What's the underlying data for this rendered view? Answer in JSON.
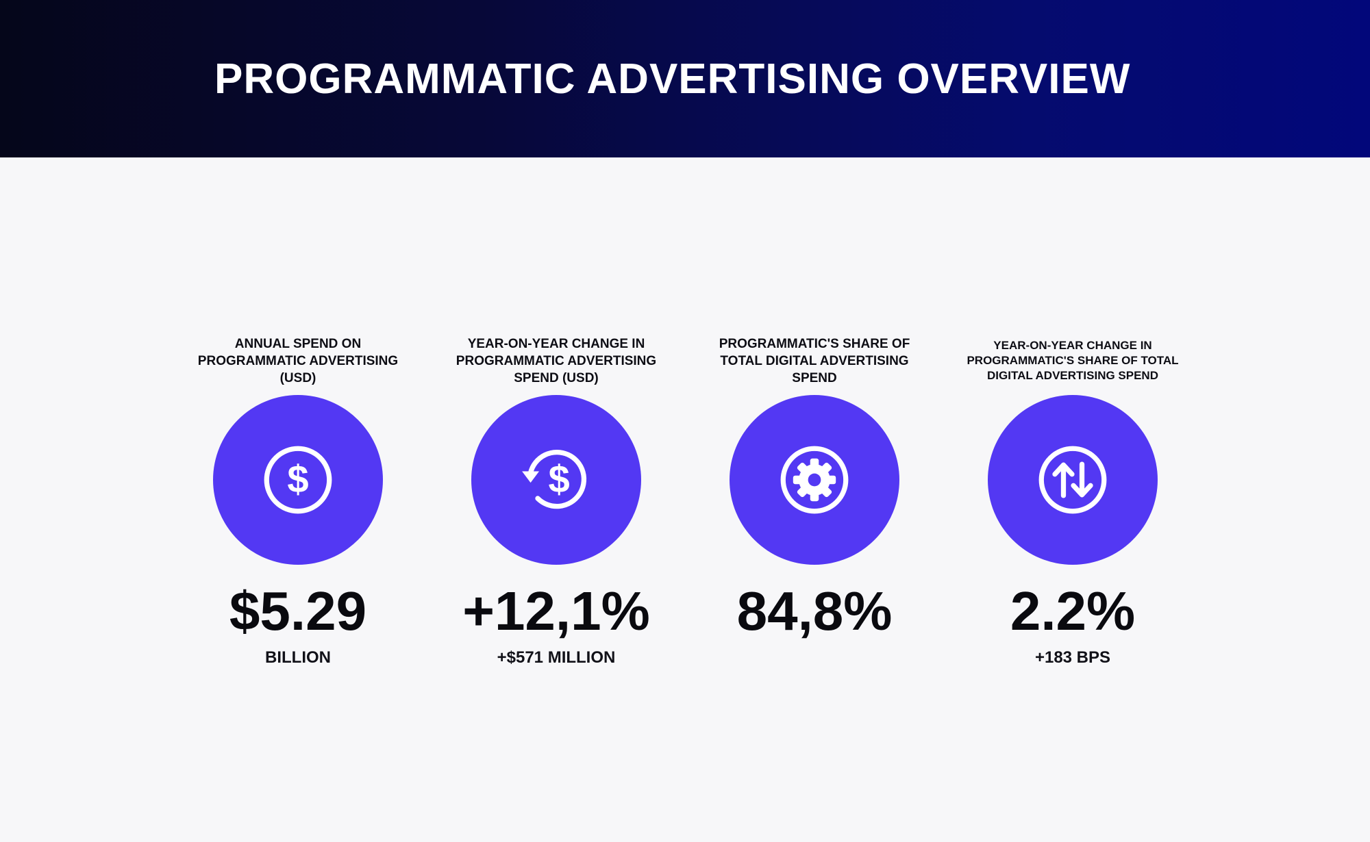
{
  "header": {
    "title": "PROGRAMMATIC ADVERTISING OVERVIEW"
  },
  "colors": {
    "accent": "#5338f3",
    "header_dark": "#05061a",
    "header_blue": "#02077a",
    "background": "#f7f7f9"
  },
  "kpis": [
    {
      "label": "ANNUAL SPEND ON PROGRAMMATIC ADVERTISING (USD)",
      "icon": "dollar-circle-icon",
      "value": "$5.29",
      "sub": "BILLION"
    },
    {
      "label": "YEAR-ON-YEAR CHANGE IN PROGRAMMATIC ADVERTISING SPEND (USD)",
      "icon": "dollar-refresh-icon",
      "value": "+12,1%",
      "sub": "+$571 MILLION"
    },
    {
      "label": "PROGRAMMATIC'S SHARE OF TOTAL DIGITAL ADVERTISING SPEND",
      "icon": "gear-icon",
      "value": "84,8%",
      "sub": ""
    },
    {
      "label": "YEAR-ON-YEAR CHANGE IN PROGRAMMATIC'S SHARE OF TOTAL DIGITAL ADVERTISING SPEND",
      "icon": "up-down-arrows-icon",
      "value": "2.2%",
      "sub": "+183 BPS"
    }
  ]
}
